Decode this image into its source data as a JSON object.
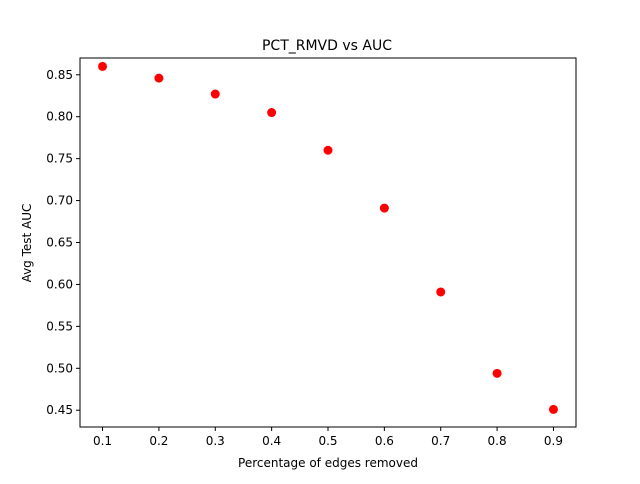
{
  "chart_data": {
    "type": "scatter",
    "title": "PCT_RMVD vs AUC",
    "xlabel": "Percentage of edges removed",
    "ylabel": "Avg Test AUC",
    "xlim": [
      0.06,
      0.94
    ],
    "ylim": [
      0.43,
      0.87
    ],
    "xticks": [
      "0.1",
      "0.2",
      "0.3",
      "0.4",
      "0.5",
      "0.6",
      "0.7",
      "0.8",
      "0.9"
    ],
    "yticks": [
      "0.45",
      "0.50",
      "0.55",
      "0.60",
      "0.65",
      "0.70",
      "0.75",
      "0.80",
      "0.85"
    ],
    "grid": false,
    "series": [
      {
        "color": "#ff0000",
        "x": [
          0.1,
          0.2,
          0.3,
          0.4,
          0.5,
          0.6,
          0.7,
          0.8,
          0.9
        ],
        "y": [
          0.86,
          0.846,
          0.827,
          0.805,
          0.76,
          0.691,
          0.591,
          0.494,
          0.451
        ]
      }
    ]
  }
}
